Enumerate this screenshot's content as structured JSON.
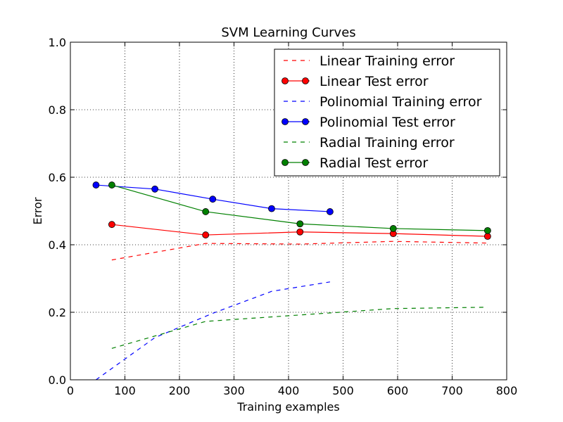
{
  "colors": {
    "linear": "#ff0000",
    "polinomial": "#0000ff",
    "radial": "#008000"
  },
  "chart_data": {
    "type": "line",
    "title": "SVM Learning Curves",
    "xlabel": "Training examples",
    "ylabel": "Error",
    "xlim": [
      0,
      800
    ],
    "ylim": [
      0,
      1.0
    ],
    "xticks": [
      "0",
      "100",
      "200",
      "300",
      "400",
      "500",
      "600",
      "700",
      "800"
    ],
    "yticks": [
      "0.0",
      "0.2",
      "0.4",
      "0.6",
      "0.8",
      "1.0"
    ],
    "grid": true,
    "legend_position": "top-right",
    "series": [
      {
        "name": "Linear Training error",
        "color_key": "linear",
        "style": "dashed",
        "x": [
          76,
          248,
          421,
          592,
          765
        ],
        "y": [
          0.355,
          0.404,
          0.402,
          0.41,
          0.405
        ]
      },
      {
        "name": "Linear Test error",
        "color_key": "linear",
        "style": "solid-marker",
        "x": [
          76,
          248,
          421,
          592,
          765
        ],
        "y": [
          0.46,
          0.429,
          0.438,
          0.433,
          0.425
        ]
      },
      {
        "name": "Polinomial Training error",
        "color_key": "polinomial",
        "style": "dashed",
        "x": [
          47,
          155,
          261,
          369,
          476
        ],
        "y": [
          0.0,
          0.125,
          0.197,
          0.262,
          0.29
        ]
      },
      {
        "name": "Polinomial Test error",
        "color_key": "polinomial",
        "style": "solid-marker",
        "x": [
          47,
          155,
          261,
          369,
          476
        ],
        "y": [
          0.577,
          0.565,
          0.535,
          0.507,
          0.498
        ]
      },
      {
        "name": "Radial Training error",
        "color_key": "radial",
        "style": "dashed",
        "x": [
          76,
          248,
          421,
          592,
          765
        ],
        "y": [
          0.093,
          0.173,
          0.192,
          0.211,
          0.215
        ]
      },
      {
        "name": "Radial Test error",
        "color_key": "radial",
        "style": "solid-marker",
        "x": [
          76,
          248,
          421,
          592,
          765
        ],
        "y": [
          0.577,
          0.498,
          0.462,
          0.448,
          0.442
        ]
      }
    ]
  }
}
